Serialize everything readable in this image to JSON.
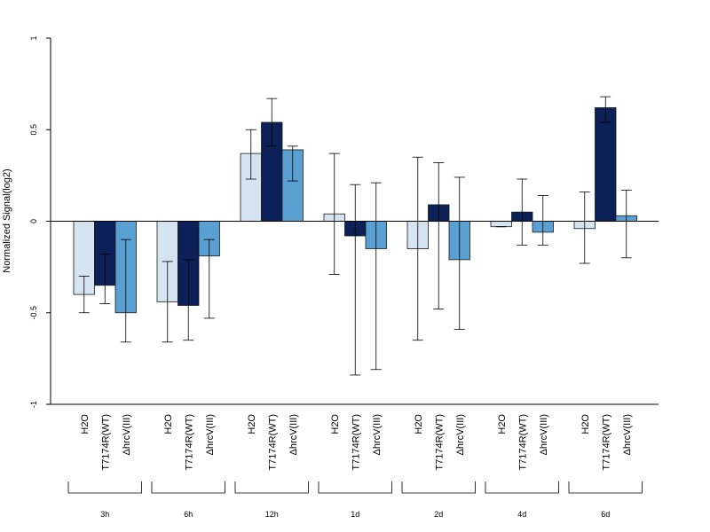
{
  "chart_data": {
    "type": "bar",
    "ylabel": "Normalized Signal(log2)",
    "ylim": [
      -1,
      1
    ],
    "yticks": [
      {
        "value": 1,
        "label": "1"
      },
      {
        "value": 0.5,
        "label": "0.5"
      },
      {
        "value": 0,
        "label": "0"
      },
      {
        "value": -0.5,
        "label": "-0.5"
      },
      {
        "value": -1,
        "label": "-1"
      }
    ],
    "groups": [
      "3h",
      "6h",
      "12h",
      "1d",
      "2d",
      "4d",
      "6d"
    ],
    "series": [
      {
        "name": "H2O",
        "color": "#d6e4f2",
        "values": [
          -0.4,
          -0.44,
          0.37,
          0.04,
          -0.15,
          -0.03,
          -0.04
        ],
        "error_low": [
          -0.5,
          -0.66,
          0.23,
          -0.29,
          -0.65,
          -0.03,
          -0.23
        ],
        "error_high": [
          -0.3,
          -0.22,
          0.5,
          0.37,
          0.35,
          -0.03,
          0.16
        ]
      },
      {
        "name": "T7174R(WT)",
        "color": "#0b2157",
        "values": [
          -0.35,
          -0.46,
          0.54,
          -0.08,
          0.09,
          0.05,
          0.62
        ],
        "error_low": [
          -0.45,
          -0.65,
          0.41,
          -0.84,
          -0.48,
          -0.13,
          0.54
        ],
        "error_high": [
          -0.18,
          -0.21,
          0.67,
          0.2,
          0.32,
          0.23,
          0.68
        ]
      },
      {
        "name": "ΔhrcV(III)",
        "color": "#5aa0d2",
        "values": [
          -0.5,
          -0.19,
          0.39,
          -0.15,
          -0.21,
          -0.06,
          0.03
        ],
        "error_low": [
          -0.66,
          -0.53,
          0.22,
          -0.81,
          -0.59,
          -0.13,
          -0.2
        ],
        "error_high": [
          -0.1,
          -0.1,
          0.41,
          0.21,
          0.24,
          0.14,
          0.17
        ]
      }
    ]
  }
}
